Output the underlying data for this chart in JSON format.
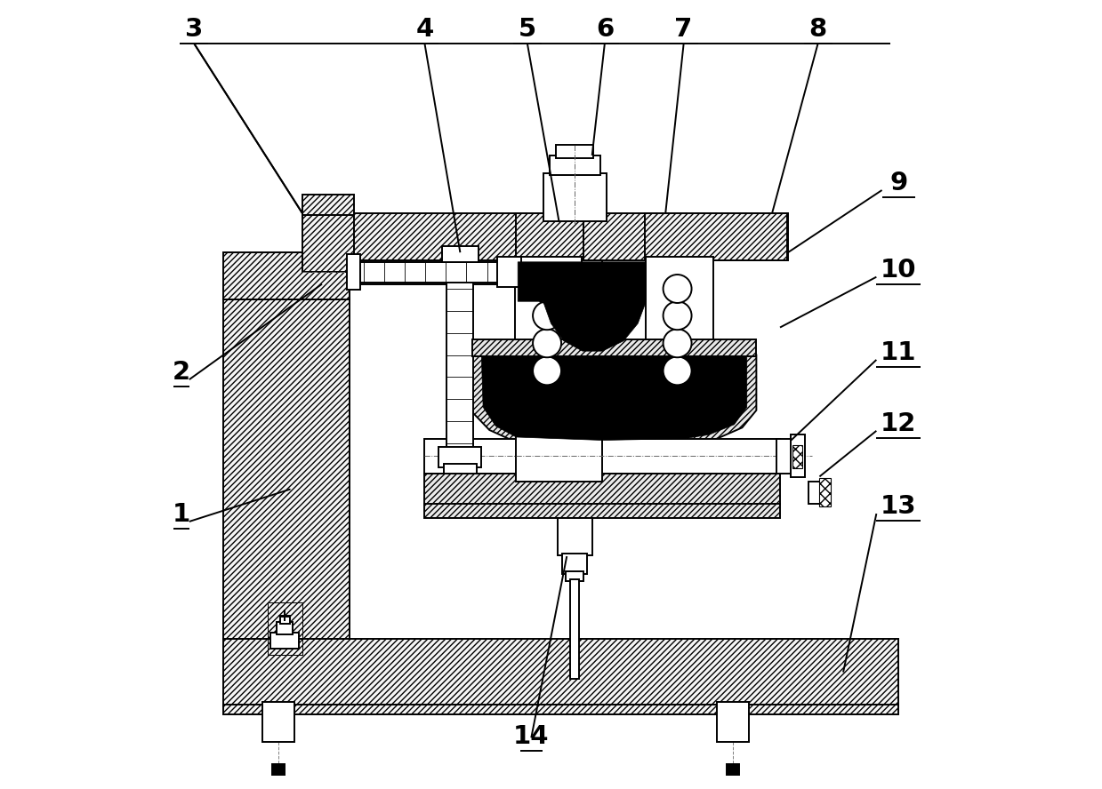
{
  "bg_color": "#ffffff",
  "line_color": "#000000",
  "figsize": [
    12.39,
    8.88
  ],
  "dpi": 100,
  "label_fontsize": 21
}
